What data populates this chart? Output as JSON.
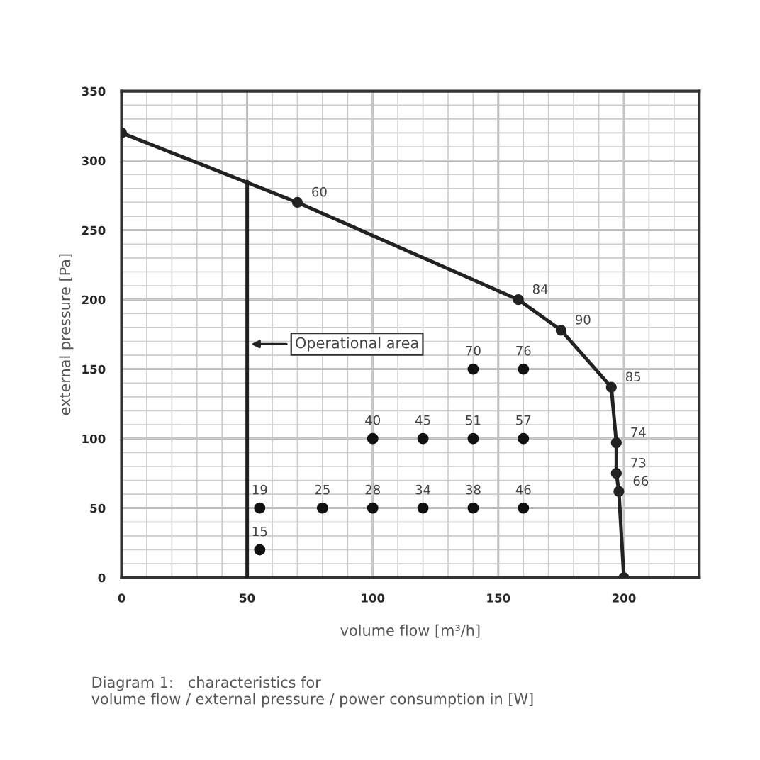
{
  "chart_data": {
    "type": "scatter",
    "xlabel": "volume flow [m³/h]",
    "ylabel": "external pressure [Pa]",
    "xlim": [
      0,
      230
    ],
    "ylim": [
      0,
      350
    ],
    "xticks": [
      0,
      {
        "value": 10,
        "label": null
      },
      {
        "value": 20,
        "label": null
      },
      {
        "value": 30,
        "label": null
      },
      {
        "value": 40,
        "label": null
      },
      50,
      {
        "value": 60,
        "label": null
      },
      {
        "value": 70,
        "label": null
      },
      {
        "value": 80,
        "label": null
      },
      {
        "value": 90,
        "label": null
      },
      100,
      {
        "value": 110,
        "label": null
      },
      {
        "value": 120,
        "label": null
      },
      {
        "value": 130,
        "label": null
      },
      {
        "value": 140,
        "label": null
      },
      150,
      {
        "value": 160,
        "label": null
      },
      {
        "value": 170,
        "label": null
      },
      {
        "value": 180,
        "label": null
      },
      {
        "value": 190,
        "label": null
      },
      200,
      {
        "value": 210,
        "label": null
      },
      {
        "value": 220,
        "label": null
      }
    ],
    "yticks": [
      0,
      {
        "value": 10,
        "label": null
      },
      {
        "value": 20,
        "label": null
      },
      {
        "value": 30,
        "label": null
      },
      {
        "value": 40,
        "label": null
      },
      50,
      {
        "value": 60,
        "label": null
      },
      {
        "value": 70,
        "label": null
      },
      {
        "value": 80,
        "label": null
      },
      {
        "value": 90,
        "label": null
      },
      100,
      {
        "value": 110,
        "label": null
      },
      {
        "value": 120,
        "label": null
      },
      {
        "value": 130,
        "label": null
      },
      {
        "value": 140,
        "label": null
      },
      150,
      {
        "value": 160,
        "label": null
      },
      {
        "value": 170,
        "label": null
      },
      {
        "value": 180,
        "label": null
      },
      {
        "value": 190,
        "label": null
      },
      200,
      {
        "value": 210,
        "label": null
      },
      {
        "value": 220,
        "label": null
      },
      {
        "value": 230,
        "label": null
      },
      {
        "value": 240,
        "label": null
      },
      250,
      {
        "value": 260,
        "label": null
      },
      {
        "value": 270,
        "label": null
      },
      {
        "value": 280,
        "label": null
      },
      {
        "value": 290,
        "label": null
      },
      300,
      {
        "value": 310,
        "label": null
      },
      {
        "value": 320,
        "label": null
      },
      {
        "value": 330,
        "label": null
      },
      {
        "value": 340,
        "label": null
      },
      350
    ],
    "grid": true,
    "marker": "circle",
    "series": [
      {
        "type": "line",
        "color": "#222222",
        "x": [
          0,
          70,
          158,
          175,
          195,
          197,
          197,
          198,
          200
        ],
        "values": [
          320,
          270,
          200,
          178,
          137,
          97,
          75,
          62,
          0
        ]
      },
      {
        "type": "line",
        "color": "#222222",
        "marker": "none",
        "x": [
          50,
          50
        ],
        "values": [
          0,
          285
        ]
      },
      {
        "color": "#111111",
        "x": [
          55,
          55,
          80,
          100,
          120,
          140,
          160,
          100,
          120,
          140,
          160,
          140,
          160
        ],
        "values": [
          20,
          50,
          50,
          50,
          50,
          50,
          50,
          100,
          100,
          100,
          100,
          150,
          150
        ]
      }
    ],
    "annotations": [
      "Operational area",
      "Diagram 1:   characteristics for\nvolume flow / external pressure / power consumption in [W]",
      {
        "text": "60",
        "x": 70,
        "y": 270
      },
      {
        "text": "84",
        "x": 158,
        "y": 200
      },
      {
        "text": "90",
        "x": 175,
        "y": 178
      },
      {
        "text": "85",
        "x": 195,
        "y": 137
      },
      {
        "text": "74",
        "x": 197,
        "y": 97
      },
      {
        "text": "73",
        "x": 197,
        "y": 75
      },
      {
        "text": "66",
        "x": 198,
        "y": 62
      },
      {
        "text": "15",
        "x": 55,
        "y": 20
      },
      {
        "text": "19",
        "x": 55,
        "y": 50
      },
      {
        "text": "25",
        "x": 80,
        "y": 50
      },
      {
        "text": "28",
        "x": 100,
        "y": 50
      },
      {
        "text": "34",
        "x": 120,
        "y": 50
      },
      {
        "text": "38",
        "x": 140,
        "y": 50
      },
      {
        "text": "46",
        "x": 160,
        "y": 50
      },
      {
        "text": "40",
        "x": 100,
        "y": 100
      },
      {
        "text": "45",
        "x": 120,
        "y": 100
      },
      {
        "text": "51",
        "x": 140,
        "y": 100
      },
      {
        "text": "57",
        "x": 160,
        "y": 100
      },
      {
        "text": "70",
        "x": 140,
        "y": 150
      },
      {
        "text": "76",
        "x": 160,
        "y": 150
      }
    ]
  }
}
